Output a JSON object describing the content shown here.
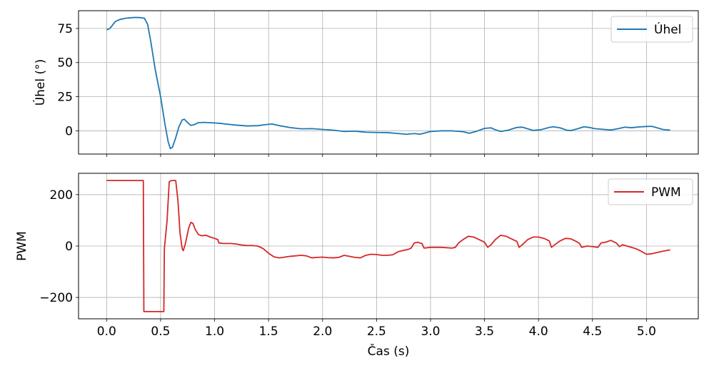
{
  "chart_data": [
    {
      "type": "line",
      "ylabel": "Úhel (°)",
      "xlim": [
        -0.26,
        5.48
      ],
      "ylim": [
        -17,
        88
      ],
      "yticks": [
        0,
        25,
        50,
        75
      ],
      "xticks": [
        0.0,
        0.5,
        1.0,
        1.5,
        2.0,
        2.5,
        3.0,
        3.5,
        4.0,
        4.5,
        5.0
      ],
      "grid": true,
      "legend": "top-right",
      "series": [
        {
          "name": "Úhel",
          "color": "#1f77b4",
          "points": [
            [
              0,
              74
            ],
            [
              0.03,
              75
            ],
            [
              0.06,
              78
            ],
            [
              0.08,
              80
            ],
            [
              0.12,
              81.5
            ],
            [
              0.18,
              82.5
            ],
            [
              0.25,
              83
            ],
            [
              0.3,
              83
            ],
            [
              0.35,
              82.5
            ],
            [
              0.38,
              78
            ],
            [
              0.41,
              65
            ],
            [
              0.45,
              45
            ],
            [
              0.5,
              25
            ],
            [
              0.54,
              5
            ],
            [
              0.57,
              -8
            ],
            [
              0.59,
              -13
            ],
            [
              0.61,
              -12
            ],
            [
              0.64,
              -5
            ],
            [
              0.67,
              3
            ],
            [
              0.7,
              8
            ],
            [
              0.72,
              8.5
            ],
            [
              0.75,
              6
            ],
            [
              0.78,
              4
            ],
            [
              0.81,
              4.5
            ],
            [
              0.85,
              6
            ],
            [
              0.9,
              6.2
            ],
            [
              0.95,
              6
            ],
            [
              1.0,
              5.8
            ],
            [
              1.05,
              5.5
            ],
            [
              1.1,
              5
            ],
            [
              1.2,
              4.2
            ],
            [
              1.3,
              3.6
            ],
            [
              1.4,
              3.8
            ],
            [
              1.48,
              4.6
            ],
            [
              1.53,
              5
            ],
            [
              1.6,
              3.8
            ],
            [
              1.7,
              2.4
            ],
            [
              1.8,
              1.5
            ],
            [
              1.9,
              1.6
            ],
            [
              2.0,
              1
            ],
            [
              2.1,
              0.5
            ],
            [
              2.2,
              -0.5
            ],
            [
              2.3,
              -0.2
            ],
            [
              2.4,
              -1
            ],
            [
              2.5,
              -1.2
            ],
            [
              2.6,
              -1.3
            ],
            [
              2.7,
              -2
            ],
            [
              2.78,
              -2.5
            ],
            [
              2.85,
              -2
            ],
            [
              2.9,
              -2.5
            ],
            [
              2.95,
              -1.5
            ],
            [
              3.0,
              -0.5
            ],
            [
              3.1,
              0
            ],
            [
              3.2,
              0
            ],
            [
              3.3,
              -0.6
            ],
            [
              3.36,
              -1.8
            ],
            [
              3.42,
              -0.5
            ],
            [
              3.5,
              1.8
            ],
            [
              3.56,
              2.2
            ],
            [
              3.6,
              0.8
            ],
            [
              3.65,
              -0.5
            ],
            [
              3.72,
              0.5
            ],
            [
              3.8,
              2.5
            ],
            [
              3.85,
              2.7
            ],
            [
              3.9,
              1.5
            ],
            [
              3.95,
              0.3
            ],
            [
              4.02,
              0.8
            ],
            [
              4.1,
              2.5
            ],
            [
              4.14,
              3
            ],
            [
              4.2,
              2.2
            ],
            [
              4.26,
              0.5
            ],
            [
              4.3,
              0.2
            ],
            [
              4.36,
              1.5
            ],
            [
              4.42,
              3
            ],
            [
              4.47,
              2.5
            ],
            [
              4.52,
              1.6
            ],
            [
              4.6,
              1.1
            ],
            [
              4.67,
              0.6
            ],
            [
              4.73,
              1.5
            ],
            [
              4.8,
              2.7
            ],
            [
              4.86,
              2.3
            ],
            [
              4.92,
              2.8
            ],
            [
              5.0,
              3.2
            ],
            [
              5.05,
              3.3
            ],
            [
              5.1,
              2.2
            ],
            [
              5.15,
              1
            ],
            [
              5.22,
              0.5
            ]
          ]
        }
      ]
    },
    {
      "type": "line",
      "ylabel": "PWM",
      "xlabel": "Čas (s)",
      "xlim": [
        -0.26,
        5.48
      ],
      "ylim": [
        -283,
        283
      ],
      "yticks": [
        -200,
        0,
        200
      ],
      "xticks": [
        0.0,
        0.5,
        1.0,
        1.5,
        2.0,
        2.5,
        3.0,
        3.5,
        4.0,
        4.5,
        5.0
      ],
      "grid": true,
      "legend": "top-right",
      "series": [
        {
          "name": "PWM",
          "color": "#d62728",
          "points": [
            [
              0,
              255
            ],
            [
              0.34,
              255
            ],
            [
              0.345,
              -255
            ],
            [
              0.53,
              -255
            ],
            [
              0.535,
              -10
            ],
            [
              0.56,
              100
            ],
            [
              0.58,
              250
            ],
            [
              0.6,
              255
            ],
            [
              0.64,
              255
            ],
            [
              0.66,
              180
            ],
            [
              0.68,
              50
            ],
            [
              0.7,
              -10
            ],
            [
              0.71,
              -18
            ],
            [
              0.73,
              10
            ],
            [
              0.76,
              70
            ],
            [
              0.78,
              92
            ],
            [
              0.8,
              88
            ],
            [
              0.82,
              65
            ],
            [
              0.85,
              45
            ],
            [
              0.88,
              40
            ],
            [
              0.92,
              42
            ],
            [
              0.96,
              35
            ],
            [
              1.0,
              30
            ],
            [
              1.03,
              25
            ],
            [
              1.04,
              12
            ],
            [
              1.08,
              10
            ],
            [
              1.15,
              10
            ],
            [
              1.2,
              8
            ],
            [
              1.25,
              4
            ],
            [
              1.3,
              2
            ],
            [
              1.35,
              2
            ],
            [
              1.4,
              0
            ],
            [
              1.45,
              -10
            ],
            [
              1.5,
              -28
            ],
            [
              1.55,
              -42
            ],
            [
              1.6,
              -46
            ],
            [
              1.7,
              -40
            ],
            [
              1.8,
              -36
            ],
            [
              1.85,
              -38
            ],
            [
              1.9,
              -46
            ],
            [
              1.95,
              -44
            ],
            [
              2.0,
              -43
            ],
            [
              2.05,
              -45
            ],
            [
              2.1,
              -46
            ],
            [
              2.15,
              -44
            ],
            [
              2.2,
              -36
            ],
            [
              2.3,
              -44
            ],
            [
              2.35,
              -46
            ],
            [
              2.4,
              -36
            ],
            [
              2.45,
              -32
            ],
            [
              2.5,
              -33
            ],
            [
              2.55,
              -36
            ],
            [
              2.6,
              -36
            ],
            [
              2.65,
              -34
            ],
            [
              2.7,
              -22
            ],
            [
              2.75,
              -17
            ],
            [
              2.8,
              -12
            ],
            [
              2.82,
              -8
            ],
            [
              2.85,
              12
            ],
            [
              2.88,
              15
            ],
            [
              2.9,
              12
            ],
            [
              2.92,
              10
            ],
            [
              2.94,
              -8
            ],
            [
              3.0,
              -5
            ],
            [
              3.1,
              -5
            ],
            [
              3.2,
              -8
            ],
            [
              3.23,
              -5
            ],
            [
              3.26,
              12
            ],
            [
              3.3,
              25
            ],
            [
              3.35,
              38
            ],
            [
              3.4,
              35
            ],
            [
              3.45,
              25
            ],
            [
              3.5,
              15
            ],
            [
              3.53,
              -5
            ],
            [
              3.56,
              5
            ],
            [
              3.6,
              25
            ],
            [
              3.65,
              42
            ],
            [
              3.7,
              38
            ],
            [
              3.75,
              28
            ],
            [
              3.8,
              18
            ],
            [
              3.82,
              -5
            ],
            [
              3.85,
              5
            ],
            [
              3.9,
              25
            ],
            [
              3.95,
              35
            ],
            [
              4.0,
              35
            ],
            [
              4.05,
              30
            ],
            [
              4.1,
              20
            ],
            [
              4.12,
              -5
            ],
            [
              4.15,
              5
            ],
            [
              4.2,
              20
            ],
            [
              4.25,
              30
            ],
            [
              4.3,
              28
            ],
            [
              4.35,
              18
            ],
            [
              4.38,
              10
            ],
            [
              4.4,
              -5
            ],
            [
              4.45,
              0
            ],
            [
              4.5,
              -2
            ],
            [
              4.55,
              -5
            ],
            [
              4.58,
              12
            ],
            [
              4.62,
              15
            ],
            [
              4.67,
              22
            ],
            [
              4.72,
              12
            ],
            [
              4.75,
              -2
            ],
            [
              4.78,
              5
            ],
            [
              4.82,
              0
            ],
            [
              4.86,
              -5
            ],
            [
              4.9,
              -10
            ],
            [
              4.95,
              -20
            ],
            [
              5.0,
              -32
            ],
            [
              5.05,
              -30
            ],
            [
              5.1,
              -25
            ],
            [
              5.15,
              -20
            ],
            [
              5.22,
              -15
            ]
          ]
        }
      ]
    }
  ]
}
